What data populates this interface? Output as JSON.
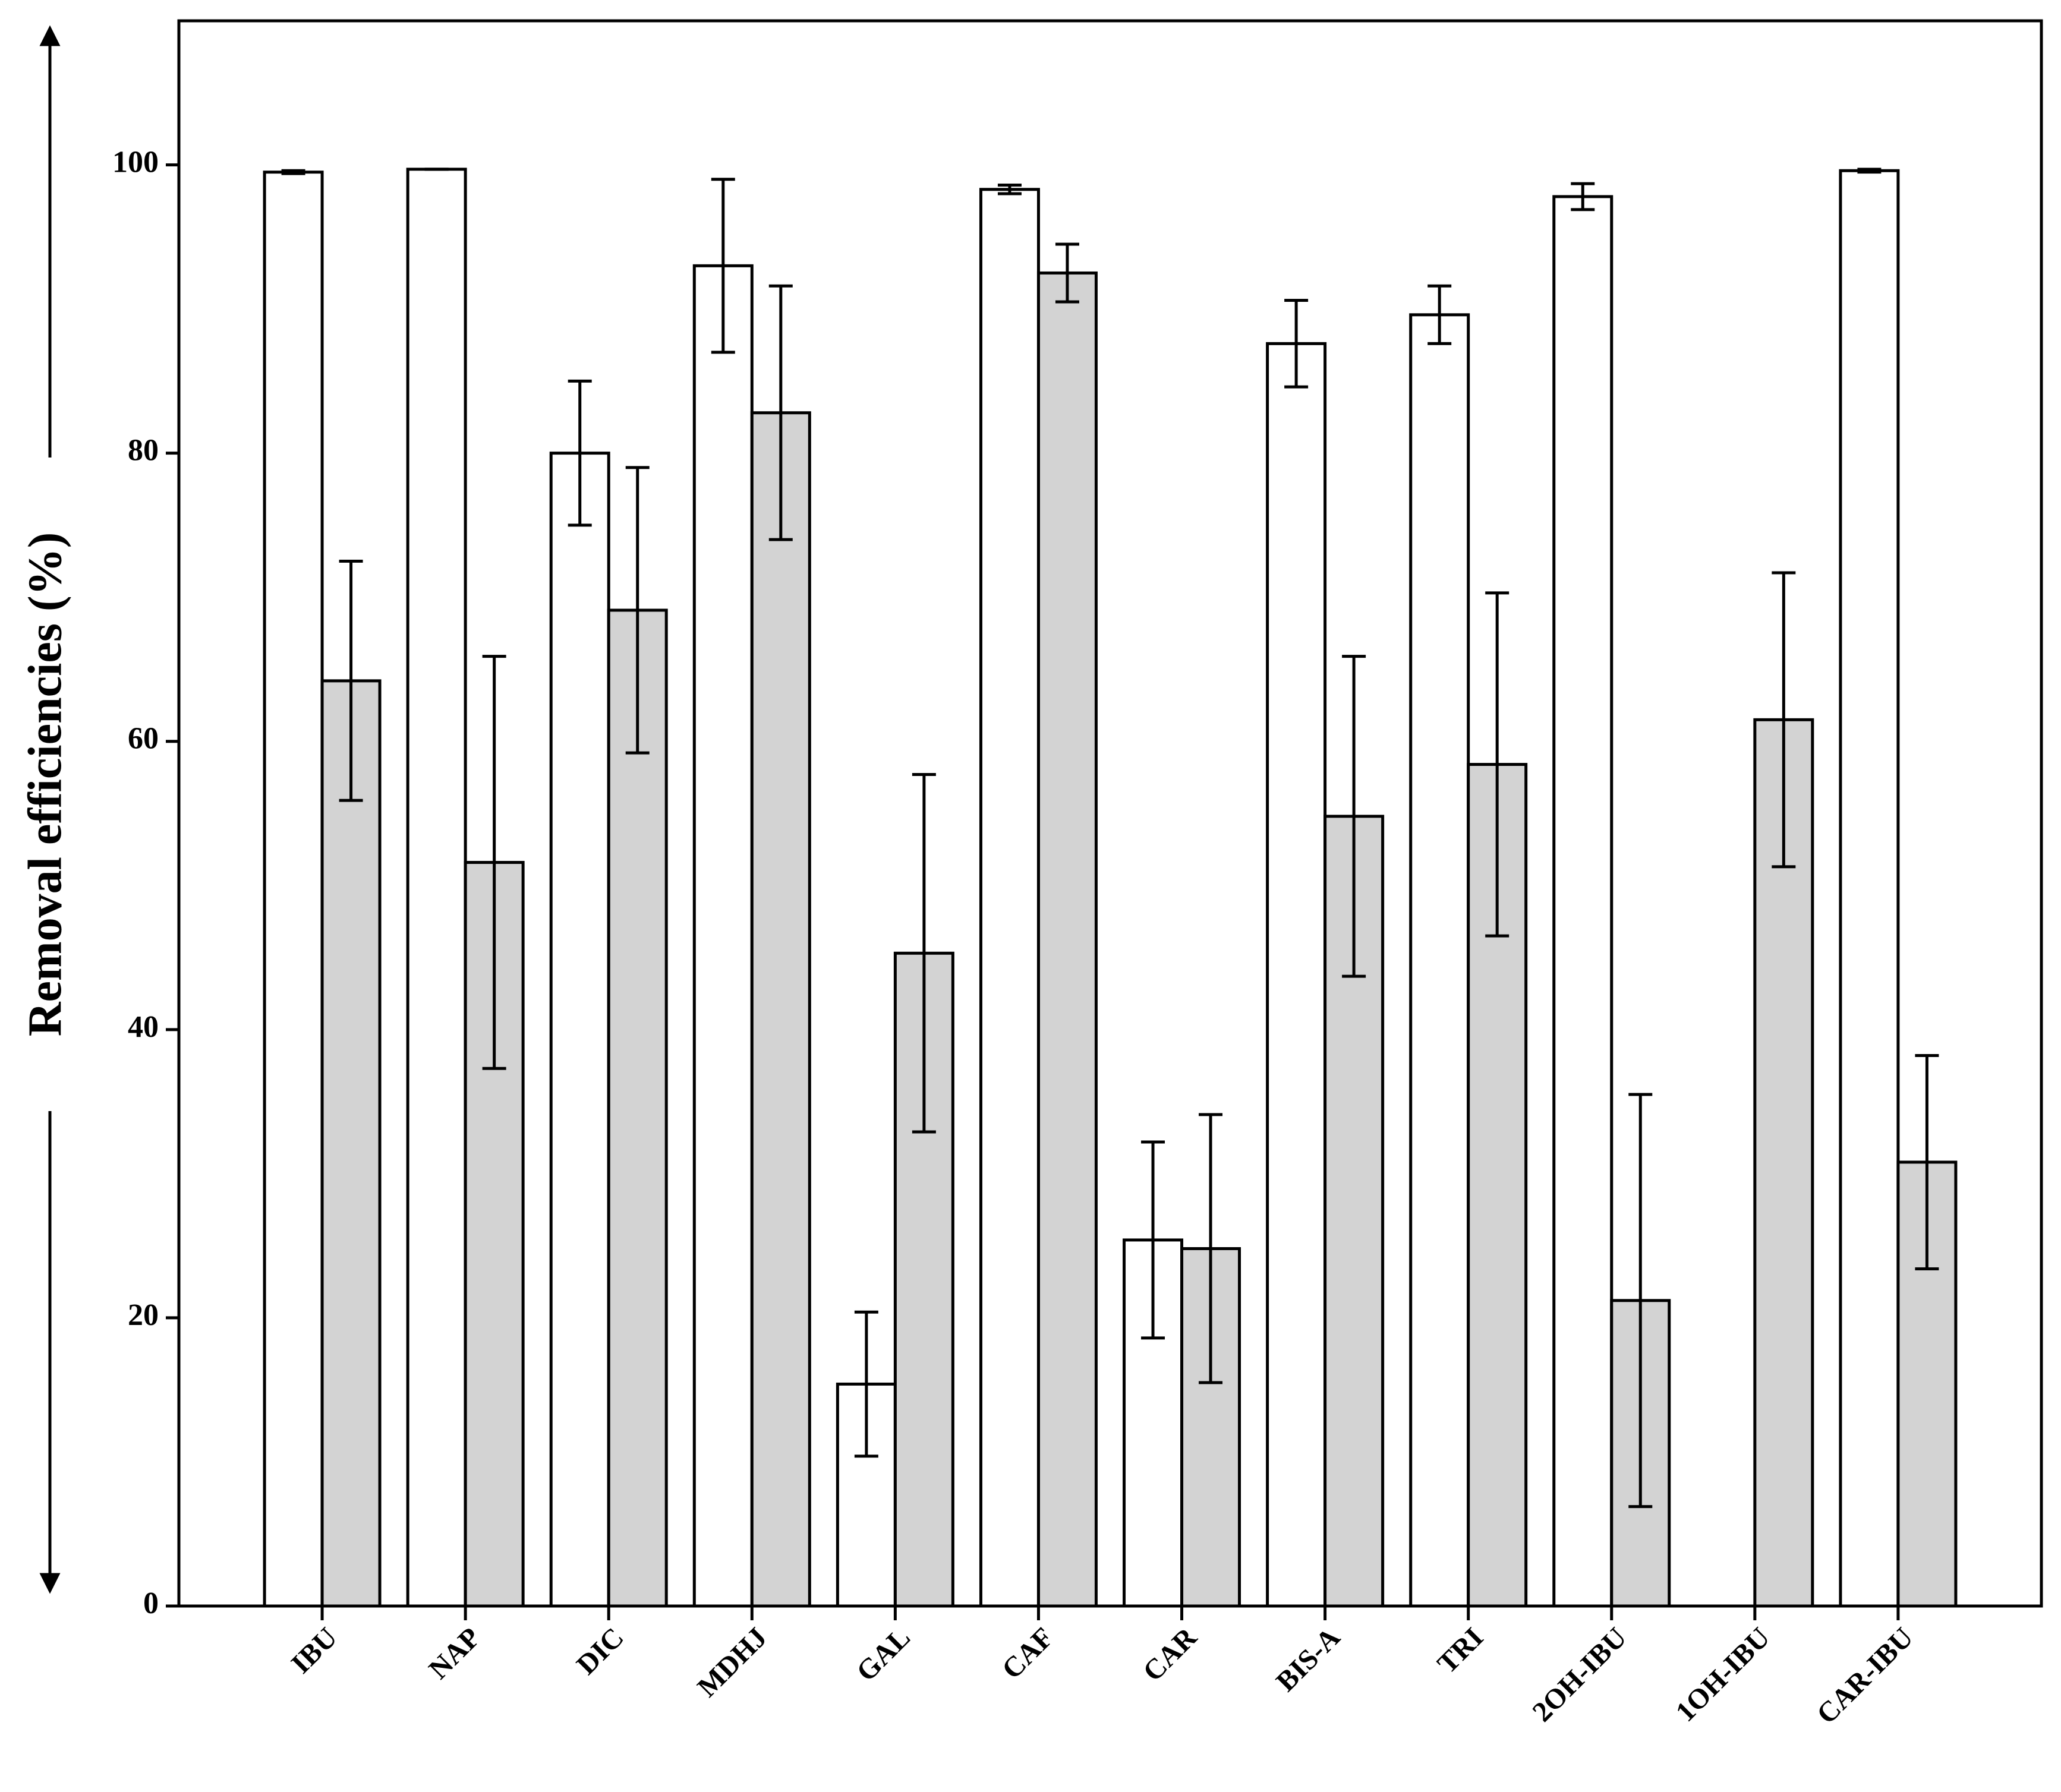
{
  "chart_data": {
    "type": "bar",
    "y_label": "Removal efficiencies (%)",
    "categories": [
      "IBU",
      "NAP",
      "DIC",
      "MDHJ",
      "GAL",
      "CAF",
      "CAR",
      "BIS-A",
      "TRI",
      "2OH-IBU",
      "1OH-IBU",
      "CAR-IBU"
    ],
    "series": [
      {
        "color": "#ffffff",
        "values": [
          99.5,
          99.7,
          80,
          93,
          15.4,
          98.3,
          25.4,
          87.6,
          89.6,
          97.8,
          null,
          99.6
        ],
        "errors": [
          0.1,
          0,
          5,
          6,
          5,
          0.3,
          6.8,
          3,
          2,
          0.9,
          null,
          0.1
        ]
      },
      {
        "color": "#d3d3d3",
        "values": [
          64.2,
          51.6,
          69.1,
          82.8,
          45.3,
          92.5,
          24.8,
          54.8,
          58.4,
          21.2,
          61.5,
          30.8
        ],
        "errors": [
          8.3,
          14.3,
          9.9,
          8.8,
          12.4,
          2,
          9.3,
          11.1,
          11.9,
          14.3,
          10.2,
          7.4
        ]
      }
    ],
    "ylim": [
      0,
      110
    ],
    "yticks": [
      0,
      20,
      40,
      60,
      80,
      100
    ],
    "grid": false
  }
}
